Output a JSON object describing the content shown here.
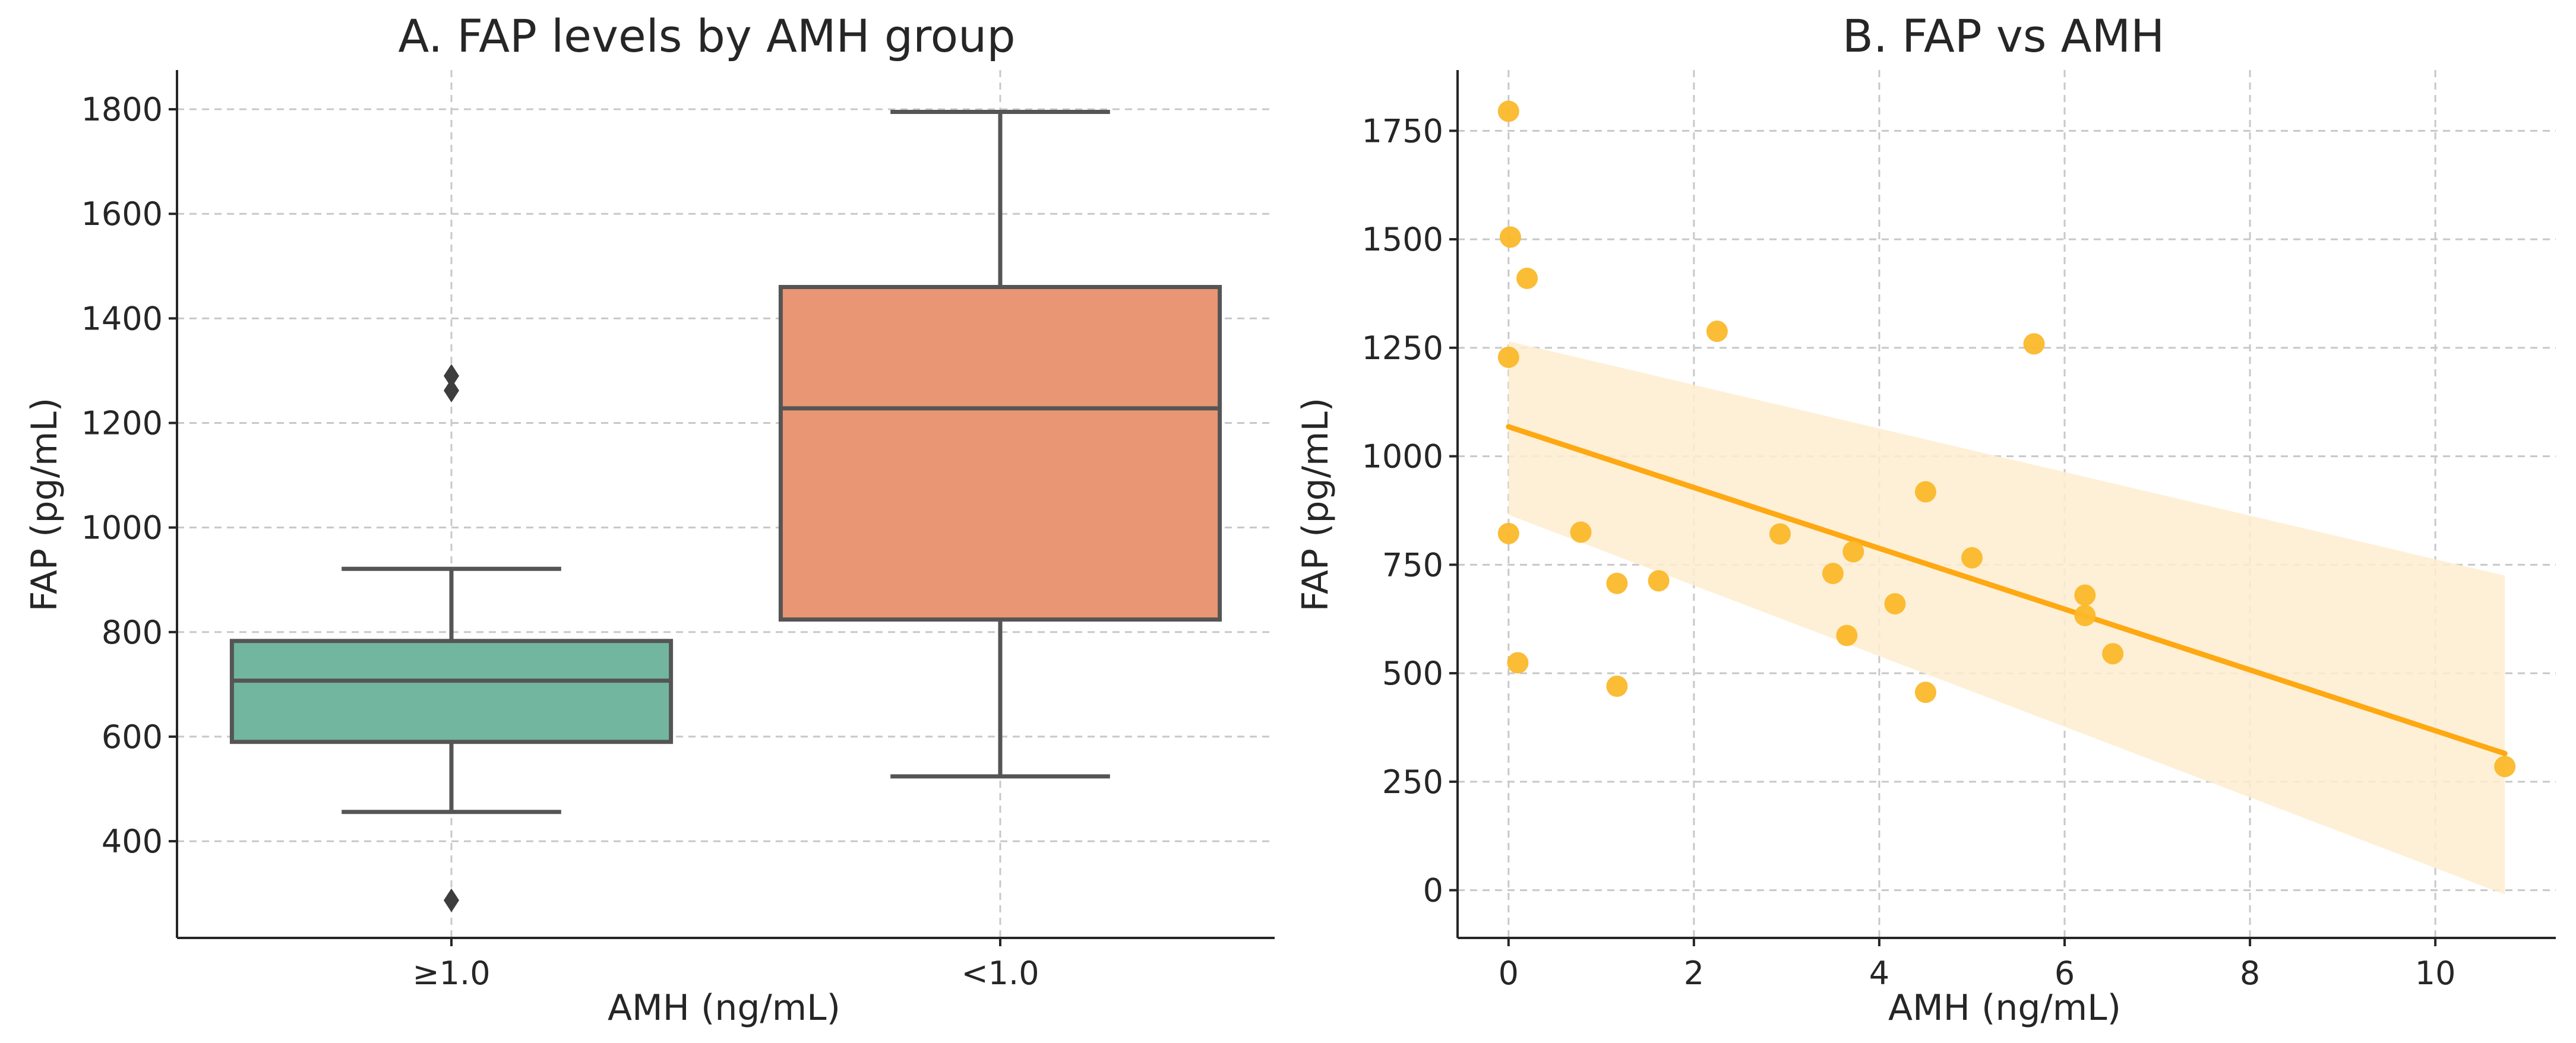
{
  "chart_data": [
    {
      "type": "box",
      "title": "A. FAP levels by AMH group",
      "xlabel": "AMH (ng/mL)",
      "ylabel": "FAP (pg/mL)",
      "ylim": [
        215,
        1875
      ],
      "yticks": [
        400,
        600,
        800,
        1000,
        1200,
        1400,
        1600,
        1800
      ],
      "grid": true,
      "groups": [
        {
          "label": "≥1.0",
          "color": "#72b69f",
          "whisker_low": 456,
          "q1": 590,
          "median": 707,
          "q3": 783,
          "whisker_high": 921,
          "outliers": [
            287,
            1262,
            1290
          ]
        },
        {
          "label": "<1.0",
          "color": "#e89674",
          "whisker_low": 524,
          "q1": 824,
          "median": 1228,
          "q3": 1460,
          "whisker_high": 1795,
          "outliers": []
        }
      ]
    },
    {
      "type": "scatter",
      "title": "B. FAP vs AMH",
      "xlabel": "AMH (ng/mL)",
      "ylabel": "FAP (pg/mL)",
      "xlim": [
        -0.55,
        11.3
      ],
      "ylim": [
        -110,
        1890
      ],
      "xticks": [
        0,
        2,
        4,
        6,
        8,
        10
      ],
      "yticks": [
        0,
        250,
        500,
        750,
        1000,
        1250,
        1500,
        1750
      ],
      "grid": true,
      "point_color": "#fbb82b",
      "line_color": "#fea812",
      "band_color": "#feedcf",
      "points": [
        {
          "x": 0.0,
          "y": 1795
        },
        {
          "x": 0.02,
          "y": 1505
        },
        {
          "x": 0.2,
          "y": 1410
        },
        {
          "x": 0.0,
          "y": 1228
        },
        {
          "x": 0.0,
          "y": 822
        },
        {
          "x": 0.1,
          "y": 524
        },
        {
          "x": 0.78,
          "y": 825
        },
        {
          "x": 1.17,
          "y": 707
        },
        {
          "x": 1.17,
          "y": 470
        },
        {
          "x": 1.62,
          "y": 713
        },
        {
          "x": 2.25,
          "y": 1288
        },
        {
          "x": 2.93,
          "y": 821
        },
        {
          "x": 3.5,
          "y": 730
        },
        {
          "x": 3.65,
          "y": 587
        },
        {
          "x": 3.72,
          "y": 780
        },
        {
          "x": 4.17,
          "y": 660
        },
        {
          "x": 4.5,
          "y": 918
        },
        {
          "x": 4.5,
          "y": 456
        },
        {
          "x": 5.0,
          "y": 766
        },
        {
          "x": 5.67,
          "y": 1259
        },
        {
          "x": 6.22,
          "y": 680
        },
        {
          "x": 6.22,
          "y": 633
        },
        {
          "x": 6.52,
          "y": 545
        },
        {
          "x": 10.75,
          "y": 285
        }
      ],
      "regression": {
        "x0": 0.0,
        "y0": 1068,
        "x1": 10.75,
        "y1": 315
      },
      "confidence_band": {
        "x": [
          0.0,
          10.75
        ],
        "upper": [
          1265,
          725
        ],
        "lower": [
          865,
          -10
        ]
      }
    }
  ]
}
